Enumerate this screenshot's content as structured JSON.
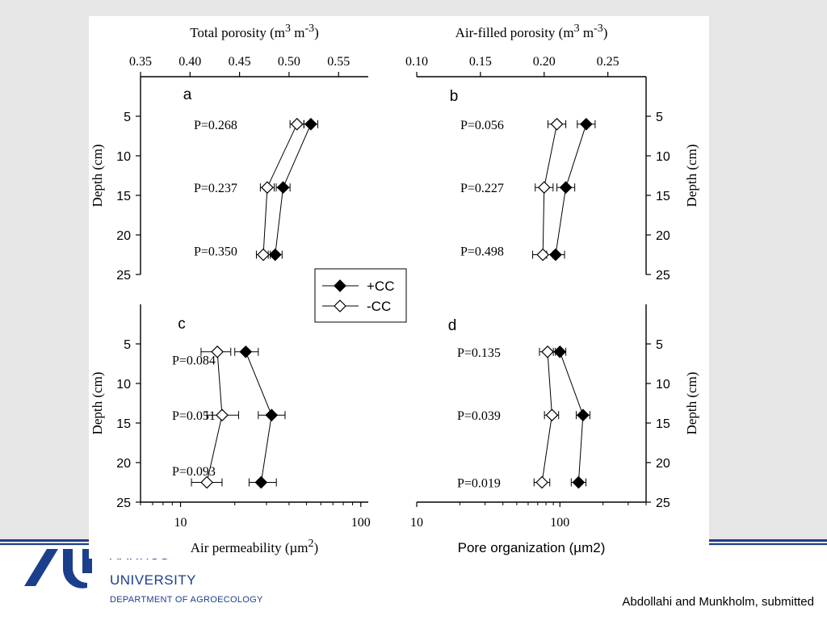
{
  "footer": {
    "university_line_1": "AARHUS",
    "university_line_2": "UNIVERSITY",
    "department": "DEPARTMENT OF AGROECOLOGY",
    "credit": "Abdollahi and Munkholm, submitted",
    "band_color": "#1c3f8c"
  },
  "legend": {
    "entries": [
      {
        "label": "+CC",
        "marker": "filled-diamond"
      },
      {
        "label": "-CC",
        "marker": "open-diamond"
      }
    ]
  },
  "chart_data": [
    {
      "panel": "a",
      "type": "scatter",
      "xlabel_main": "Total porosity (m",
      "xlabel_unit": "3",
      "xlabel_mid": " m",
      "xlabel_unit2": "-3",
      "xlabel_end": ")",
      "xlabel_position": "top",
      "xlim": [
        0.35,
        0.58
      ],
      "xticks": [
        0.35,
        0.4,
        0.45,
        0.5,
        0.55
      ],
      "xtick_labels": [
        "0.35",
        "0.40",
        "0.45",
        "0.50",
        "0.55"
      ],
      "ylabel": "Depth (cm)",
      "ylim": [
        0,
        25
      ],
      "yticks": [
        5,
        10,
        15,
        20,
        25
      ],
      "ytick_labels": [
        "5",
        "10",
        "15",
        "20",
        "25"
      ],
      "y_side": "left",
      "x_scale": "linear",
      "series": [
        {
          "name": "+CC",
          "x": [
            0.522,
            0.494,
            0.486
          ],
          "y": [
            6,
            14,
            22.5
          ],
          "err": [
            0.007,
            0.007,
            0.007
          ]
        },
        {
          "name": "-CC",
          "x": [
            0.508,
            0.478,
            0.474
          ],
          "y": [
            6,
            14,
            22.5
          ],
          "err": [
            0.007,
            0.007,
            0.007
          ]
        }
      ],
      "p_values": [
        {
          "text": "P=0.268",
          "depth": 6
        },
        {
          "text": "P=0.237",
          "depth": 14
        },
        {
          "text": "P=0.350",
          "depth": 22
        }
      ]
    },
    {
      "panel": "b",
      "type": "scatter",
      "xlabel_main": "Air-filled porosity (m",
      "xlabel_unit": "3",
      "xlabel_mid": " m",
      "xlabel_unit2": "-3",
      "xlabel_end": ")",
      "xlabel_position": "top",
      "xlim": [
        0.1,
        0.28
      ],
      "xticks": [
        0.1,
        0.15,
        0.2,
        0.25
      ],
      "xtick_labels": [
        "0.10",
        "0.15",
        "0.20",
        "0.25"
      ],
      "ylabel": "Depth (cm)",
      "ylim": [
        0,
        25
      ],
      "yticks": [
        5,
        10,
        15,
        20,
        25
      ],
      "ytick_labels": [
        "5",
        "10",
        "15",
        "20",
        "25"
      ],
      "y_side": "right",
      "x_scale": "linear",
      "series": [
        {
          "name": "+CC",
          "x": [
            0.233,
            0.217,
            0.209
          ],
          "y": [
            6,
            14,
            22.5
          ],
          "err": [
            0.007,
            0.007,
            0.007
          ]
        },
        {
          "name": "-CC",
          "x": [
            0.21,
            0.2,
            0.199
          ],
          "y": [
            6,
            14,
            22.5
          ],
          "err": [
            0.007,
            0.007,
            0.008
          ]
        }
      ],
      "p_values": [
        {
          "text": "P=0.056",
          "depth": 6
        },
        {
          "text": "P=0.227",
          "depth": 14
        },
        {
          "text": "P=0.498",
          "depth": 22
        }
      ]
    },
    {
      "panel": "c",
      "type": "scatter",
      "xlabel_main": "Air permeability (µm",
      "xlabel_unit": "2",
      "xlabel_mid": "",
      "xlabel_unit2": "",
      "xlabel_end": ")",
      "xlabel_position": "bottom",
      "xlim": [
        6,
        110
      ],
      "xticks": [
        10,
        100
      ],
      "xtick_labels": [
        "10",
        "100"
      ],
      "ylabel": "Depth (cm)",
      "ylim": [
        0,
        25
      ],
      "yticks": [
        5,
        10,
        15,
        20,
        25
      ],
      "ytick_labels": [
        "5",
        "10",
        "15",
        "20",
        "25"
      ],
      "y_side": "left",
      "x_scale": "log",
      "series": [
        {
          "name": "+CC",
          "x": [
            23,
            32,
            28
          ],
          "y": [
            6,
            14,
            22.5
          ],
          "err_low": [
            20,
            27,
            24
          ],
          "err_high": [
            27,
            38,
            34
          ]
        },
        {
          "name": "-CC",
          "x": [
            16,
            17,
            14
          ],
          "y": [
            6,
            14,
            22.5
          ],
          "err_low": [
            13,
            14,
            11.5
          ],
          "err_high": [
            19,
            21,
            17
          ]
        }
      ],
      "p_values": [
        {
          "text": "P=0.084",
          "depth": 7
        },
        {
          "text": "P=0.051",
          "depth": 14
        },
        {
          "text": "P=0.093",
          "depth": 21
        }
      ]
    },
    {
      "panel": "d",
      "type": "scatter",
      "xlabel_main": "Pore organization (µm2)",
      "xlabel_unit": "",
      "xlabel_mid": "",
      "xlabel_unit2": "",
      "xlabel_end": "",
      "xlabel_position": "bottom",
      "xlim": [
        10,
        400
      ],
      "xticks": [
        10,
        100
      ],
      "xtick_labels": [
        "10",
        "100"
      ],
      "ylabel": "Depth (cm)",
      "ylim": [
        0,
        25
      ],
      "yticks": [
        5,
        10,
        15,
        20,
        25
      ],
      "ytick_labels": [
        "5",
        "10",
        "15",
        "20",
        "25"
      ],
      "y_side": "right",
      "x_scale": "log",
      "series": [
        {
          "name": "+CC",
          "x": [
            100,
            145,
            135
          ],
          "y": [
            6,
            14,
            22.5
          ],
          "err_low": [
            90,
            130,
            120
          ],
          "err_high": [
            110,
            162,
            152
          ]
        },
        {
          "name": "-CC",
          "x": [
            82,
            88,
            75
          ],
          "y": [
            6,
            14,
            22.5
          ],
          "err_low": [
            72,
            78,
            66
          ],
          "err_high": [
            93,
            98,
            85
          ]
        }
      ],
      "p_values": [
        {
          "text": "P=0.135",
          "depth": 6
        },
        {
          "text": "P=0.039",
          "depth": 14
        },
        {
          "text": "P=0.019",
          "depth": 22.5
        }
      ]
    }
  ]
}
